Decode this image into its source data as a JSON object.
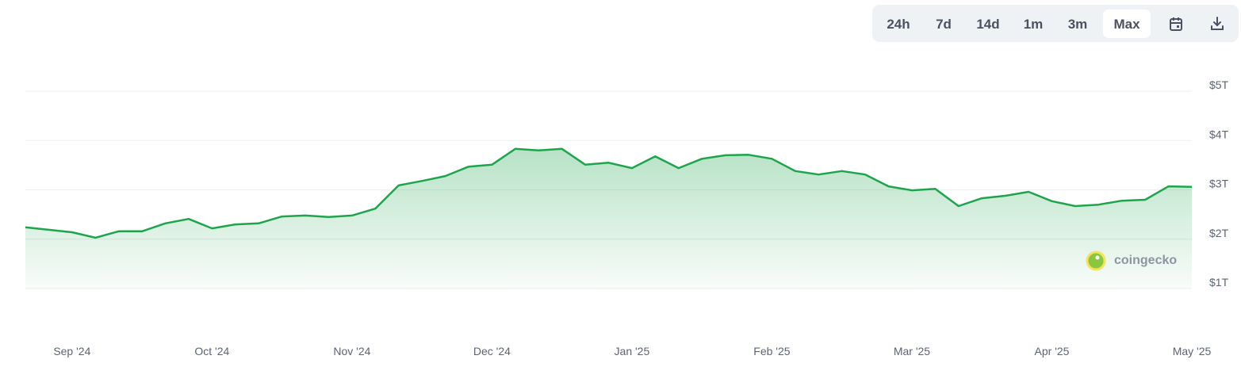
{
  "chart_data": {
    "type": "line",
    "categories": [
      null,
      null,
      "Sep '24",
      null,
      null,
      null,
      null,
      null,
      "Oct '24",
      null,
      null,
      null,
      null,
      null,
      "Nov '24",
      null,
      null,
      null,
      null,
      null,
      "Dec '24",
      null,
      null,
      null,
      null,
      null,
      "Jan '25",
      null,
      null,
      null,
      null,
      null,
      "Feb '25",
      null,
      null,
      null,
      null,
      null,
      "Mar '25",
      null,
      null,
      null,
      null,
      null,
      "Apr '25",
      null,
      null,
      null,
      null,
      null,
      "May '25"
    ],
    "values": [
      2.24,
      2.19,
      2.14,
      2.03,
      2.16,
      2.16,
      2.32,
      2.41,
      2.22,
      2.3,
      2.32,
      2.46,
      2.48,
      2.45,
      2.48,
      2.62,
      3.09,
      3.18,
      3.28,
      3.47,
      3.51,
      3.83,
      3.8,
      3.83,
      3.51,
      3.55,
      3.44,
      3.68,
      3.44,
      3.63,
      3.7,
      3.71,
      3.63,
      3.38,
      3.31,
      3.38,
      3.31,
      3.07,
      2.99,
      3.02,
      2.67,
      2.83,
      2.88,
      2.96,
      2.77,
      2.67,
      2.7,
      2.78,
      2.8,
      3.07,
      3.06
    ],
    "color": "#1ea54c",
    "ylim": [
      1,
      5
    ],
    "yticks": [
      {
        "value": 1,
        "label": "$1T"
      },
      {
        "value": 2,
        "label": "$2T"
      },
      {
        "value": 3,
        "label": "$3T"
      },
      {
        "value": 4,
        "label": "$4T"
      },
      {
        "value": 5,
        "label": "$5T"
      }
    ],
    "grid": true,
    "watermark": "coingecko"
  },
  "controls": {
    "range_buttons": [
      "24h",
      "7d",
      "14d",
      "1m",
      "3m",
      "Max"
    ],
    "selected_range": "Max"
  }
}
